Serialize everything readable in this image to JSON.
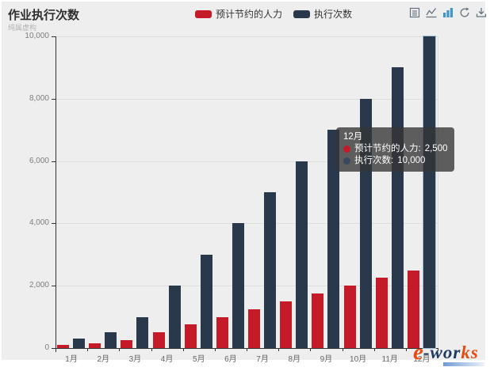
{
  "header": {
    "title": "作业执行次数",
    "subtitle": "纯属虚构"
  },
  "legend": [
    {
      "label": "预计节约的人力",
      "color": "#c51b29"
    },
    {
      "label": "执行次数",
      "color": "#29384a"
    }
  ],
  "toolbar": {
    "icon_color": "#66727e",
    "active_color": "#3e98c5",
    "icons": [
      "data-view",
      "line-chart",
      "bar-chart",
      "restore",
      "save-as-image"
    ]
  },
  "tooltip": {
    "title": "12月",
    "rows": [
      {
        "label": "预计节约的人力:",
        "value": "2,500",
        "color": "#c51b29"
      },
      {
        "label": "执行次数:",
        "value": "10,000",
        "color": "#3a4a5c"
      }
    ]
  },
  "chart_data": {
    "type": "bar",
    "title": "作业执行次数",
    "categories": [
      "1月",
      "2月",
      "3月",
      "4月",
      "5月",
      "6月",
      "7月",
      "8月",
      "9月",
      "10月",
      "11月",
      "12月"
    ],
    "series": [
      {
        "name": "预计节约的人力",
        "color": "#c51b29",
        "values": [
          100,
          150,
          250,
          500,
          750,
          1000,
          1250,
          1500,
          1750,
          2000,
          2250,
          2500
        ]
      },
      {
        "name": "执行次数",
        "color": "#29384a",
        "values": [
          300,
          500,
          1000,
          2000,
          3000,
          4000,
          5000,
          6000,
          7000,
          8000,
          9000,
          10000
        ]
      }
    ],
    "ylim": [
      0,
      10000
    ],
    "y_ticks": [
      "0",
      "2,000",
      "4,000",
      "6,000",
      "8,000",
      "10,000"
    ],
    "grid": true,
    "legend_position": "top",
    "highlighted_category": "12月"
  },
  "watermark": {
    "prefix": "e",
    "main": "-wor",
    "accent": "ks"
  }
}
